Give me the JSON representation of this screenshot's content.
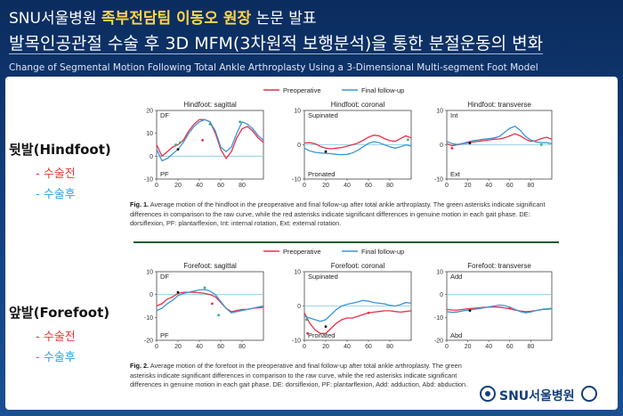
{
  "header": {
    "line1_pre": "SNU서울병원 ",
    "line1_highlight": "족부전담팀 이동오 원장",
    "line1_post": " 논문 발표",
    "line2": "발목인공관절 수술 후 3D MFM(3차원적 보행분석)을 통한 분절운동의 변화",
    "line3": "Change of Segmental Motion Following Total Ankle Arthroplasty Using a 3-Dimensional Multi-segment Foot Model"
  },
  "side_labels": {
    "hindfoot": {
      "title": "뒷발(Hindfoot)",
      "pre": "- 수술전",
      "post": "- 수술후"
    },
    "forefoot": {
      "title": "앞발(Forefoot)",
      "pre": "- 수술전",
      "post": "- 수술후"
    }
  },
  "legend": {
    "preoperative": "Preoperative",
    "final": "Final follow-up"
  },
  "colors": {
    "preoperative": "#e8304a",
    "final": "#3a95d6",
    "green_marker": "#2bb673",
    "red_marker": "#e8304a"
  },
  "captions": {
    "fig1_label": "Fig. 1.",
    "fig1_text": " Average motion of the hindfoot in the preoperative and final follow-up after total ankle arthroplasty. The green asterisks indicate significant differences in comparison to the raw curve, while the red asterisks indicate significant differences in genuine motion in each gait phase. DE: dorsiflexion, PF: plantarflexion, Int: internal rotation, Ext: external rotation.",
    "fig2_label": "Fig. 2.",
    "fig2_text": " Average motion of the forefoot in the preoperative and final follow-up after total ankle arthroplasty. The green asterisks indicate significant differences in comparison to the raw curve, while the red asterisks indicate significant differences in genuine motion in each gait phase. DE: dorsiflexion, PF: plantarflexion, Add: adduction, Abd: abduction."
  },
  "logo_text": "SNU서울병원",
  "chart_data": [
    {
      "type": "line",
      "title": "Hindfoot: sagittal",
      "top_label": "DF",
      "bottom_label": "PF",
      "xlim": [
        0,
        100
      ],
      "ylim": [
        -10,
        20
      ],
      "yticks": [
        -10,
        0,
        10,
        20
      ],
      "xticks": [
        0,
        20,
        40,
        60,
        80
      ],
      "x": [
        0,
        5,
        10,
        15,
        20,
        25,
        30,
        35,
        40,
        45,
        50,
        55,
        60,
        65,
        70,
        75,
        80,
        85,
        90,
        95,
        100
      ],
      "series": [
        {
          "name": "Preoperative",
          "values": [
            5,
            0,
            2,
            4,
            5,
            7,
            11,
            14,
            16,
            16,
            15,
            10,
            3,
            -1,
            2,
            8,
            12,
            13,
            11,
            8,
            6
          ]
        },
        {
          "name": "Final follow-up",
          "values": [
            3,
            -2,
            -1,
            1,
            3,
            6,
            10,
            13,
            15,
            16,
            15,
            11,
            4,
            2,
            4,
            10,
            15,
            14,
            12,
            9,
            7
          ]
        }
      ]
    },
    {
      "type": "line",
      "title": "Hindfoot: coronal",
      "top_label": "Supinated",
      "bottom_label": "Pronated",
      "xlim": [
        0,
        100
      ],
      "ylim": [
        -10,
        10
      ],
      "yticks": [
        -10,
        0,
        10
      ],
      "xticks": [
        0,
        20,
        40,
        60,
        80
      ],
      "x": [
        0,
        5,
        10,
        15,
        20,
        25,
        30,
        35,
        40,
        45,
        50,
        55,
        60,
        65,
        70,
        75,
        80,
        85,
        90,
        95,
        100
      ],
      "series": [
        {
          "name": "Preoperative",
          "values": [
            0.5,
            0.6,
            0.3,
            -0.5,
            -1,
            -1.2,
            -1,
            -0.8,
            -0.4,
            0,
            0.5,
            1.3,
            2.2,
            2.8,
            2.6,
            1.8,
            1.2,
            1,
            1.8,
            2.6,
            2
          ]
        },
        {
          "name": "Final follow-up",
          "values": [
            -1,
            -1.8,
            -2.2,
            -2.4,
            -2.5,
            -2.6,
            -2.8,
            -2.9,
            -2.8,
            -2.4,
            -1.6,
            -0.6,
            0.4,
            0.9,
            0.6,
            0,
            -0.6,
            -1,
            -0.6,
            0,
            -0.4
          ]
        }
      ]
    },
    {
      "type": "line",
      "title": "Hindfoot: transverse",
      "top_label": "Int",
      "bottom_label": "Ext",
      "xlim": [
        0,
        100
      ],
      "ylim": [
        -10,
        10
      ],
      "yticks": [
        -10,
        0,
        10
      ],
      "xticks": [
        0,
        20,
        40,
        60,
        80
      ],
      "x": [
        0,
        5,
        10,
        15,
        20,
        25,
        30,
        35,
        40,
        45,
        50,
        55,
        60,
        65,
        70,
        75,
        80,
        85,
        90,
        95,
        100
      ],
      "series": [
        {
          "name": "Preoperative",
          "values": [
            0.3,
            -0.3,
            0,
            0.3,
            0.5,
            0.8,
            1,
            1.2,
            1.4,
            1.6,
            1.7,
            2,
            2.6,
            3.2,
            2.6,
            1.6,
            1,
            1.2,
            1.8,
            2.2,
            1.6
          ]
        },
        {
          "name": "Final follow-up",
          "values": [
            1,
            0.3,
            0.1,
            0.4,
            0.8,
            1.2,
            1.4,
            1.6,
            1.8,
            2,
            2.4,
            3.6,
            4.8,
            5.4,
            4.2,
            2.4,
            1.4,
            0.8,
            0.6,
            0.6,
            0.3
          ]
        }
      ]
    },
    {
      "type": "line",
      "title": "Forefoot: sagittal",
      "top_label": "DF",
      "bottom_label": "PF",
      "xlim": [
        0,
        100
      ],
      "ylim": [
        -20,
        10
      ],
      "yticks": [
        -20,
        -10,
        0,
        10
      ],
      "xticks": [
        0,
        20,
        40,
        60,
        80
      ],
      "x": [
        0,
        5,
        10,
        15,
        20,
        25,
        30,
        35,
        40,
        45,
        50,
        55,
        60,
        65,
        70,
        75,
        80,
        85,
        90,
        95,
        100
      ],
      "series": [
        {
          "name": "Preoperative",
          "values": [
            -5,
            -4,
            -2,
            -1,
            0.5,
            1,
            1,
            1,
            0.8,
            0.5,
            0,
            -1,
            -3.5,
            -6,
            -7.5,
            -7,
            -6.5,
            -6.5,
            -6,
            -5.8,
            -5.5
          ]
        },
        {
          "name": "Final follow-up",
          "values": [
            -7,
            -6,
            -4,
            -2.5,
            -0.5,
            0.5,
            1,
            1.5,
            2,
            2.2,
            1.5,
            0,
            -3,
            -6,
            -8,
            -7.5,
            -7,
            -6.5,
            -6,
            -5.5,
            -5
          ]
        }
      ]
    },
    {
      "type": "line",
      "title": "Forefoot: coronal",
      "top_label": "Supinated",
      "bottom_label": "Pronated",
      "xlim": [
        0,
        100
      ],
      "ylim": [
        -10,
        10
      ],
      "yticks": [
        -10,
        0,
        10
      ],
      "xticks": [
        0,
        20,
        40,
        60,
        80
      ],
      "x": [
        0,
        5,
        10,
        15,
        20,
        25,
        30,
        35,
        40,
        45,
        50,
        55,
        60,
        65,
        70,
        75,
        80,
        85,
        90,
        95,
        100
      ],
      "series": [
        {
          "name": "Preoperative",
          "values": [
            -2,
            -5,
            -7,
            -8,
            -8,
            -6.5,
            -5,
            -4,
            -3.5,
            -3.5,
            -3,
            -2.5,
            -2,
            -1.8,
            -1.6,
            -1.4,
            -1.4,
            -1.6,
            -1.8,
            -1.6,
            -1.4
          ]
        },
        {
          "name": "Final follow-up",
          "values": [
            -3,
            -3.5,
            -4,
            -4.5,
            -4,
            -2.5,
            -1,
            0,
            0.5,
            0.8,
            1.2,
            1.6,
            1.4,
            1,
            0.8,
            0.6,
            0.2,
            0,
            0.4,
            1,
            0.8
          ]
        }
      ]
    },
    {
      "type": "line",
      "title": "Forefoot: transverse",
      "top_label": "Add",
      "bottom_label": "Abd",
      "xlim": [
        0,
        100
      ],
      "ylim": [
        -20,
        10
      ],
      "yticks": [
        -20,
        -10,
        0,
        10
      ],
      "xticks": [
        0,
        20,
        40,
        60,
        80
      ],
      "x": [
        0,
        5,
        10,
        15,
        20,
        25,
        30,
        35,
        40,
        45,
        50,
        55,
        60,
        65,
        70,
        75,
        80,
        85,
        90,
        95,
        100
      ],
      "series": [
        {
          "name": "Preoperative",
          "values": [
            -6.5,
            -6.8,
            -6.8,
            -6.5,
            -6.2,
            -6,
            -5.8,
            -5.6,
            -5.5,
            -5.4,
            -5.5,
            -5.8,
            -6.2,
            -6.8,
            -7.2,
            -7.5,
            -7.3,
            -7,
            -6.6,
            -6.4,
            -6.2
          ]
        },
        {
          "name": "Final follow-up",
          "values": [
            -7.5,
            -7.8,
            -7.6,
            -7.2,
            -6.8,
            -6.5,
            -6.2,
            -5.8,
            -5.4,
            -5,
            -4.6,
            -4.8,
            -5.5,
            -6.5,
            -7.5,
            -8,
            -7.6,
            -7,
            -6.5,
            -6.2,
            -6
          ]
        }
      ]
    }
  ]
}
